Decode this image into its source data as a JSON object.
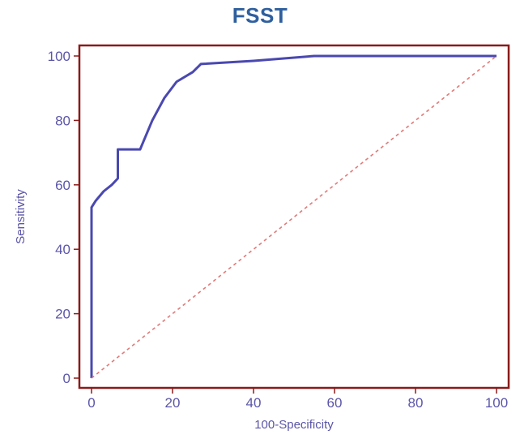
{
  "chart_data": {
    "type": "line",
    "title": "FSST",
    "xlabel": "100-Specificity",
    "ylabel": "Sensitivity",
    "xlim": [
      0,
      100
    ],
    "ylim": [
      0,
      100
    ],
    "x_ticks": [
      "0",
      "20",
      "40",
      "60",
      "80",
      "100"
    ],
    "y_ticks": [
      "0",
      "20",
      "40",
      "60",
      "80",
      "100"
    ],
    "grid": false,
    "colors": {
      "frame": "#8b1a1a",
      "curve": "#4a48b0",
      "diagonal": "#e07a78",
      "ticks": "#5a55a8",
      "title": "#2e5f9e"
    },
    "series": [
      {
        "style": "solid",
        "x": [
          0,
          0,
          1,
          3,
          5,
          6.5,
          6.5,
          9,
          12,
          13,
          15,
          18,
          21,
          25,
          27,
          40,
          55,
          100
        ],
        "y": [
          0,
          53,
          55,
          58,
          60,
          62,
          71,
          71,
          71,
          74,
          80,
          87,
          92,
          95,
          97.5,
          98.5,
          100,
          100
        ]
      },
      {
        "style": "dashed",
        "x": [
          0,
          100
        ],
        "y": [
          0,
          100
        ]
      }
    ]
  }
}
